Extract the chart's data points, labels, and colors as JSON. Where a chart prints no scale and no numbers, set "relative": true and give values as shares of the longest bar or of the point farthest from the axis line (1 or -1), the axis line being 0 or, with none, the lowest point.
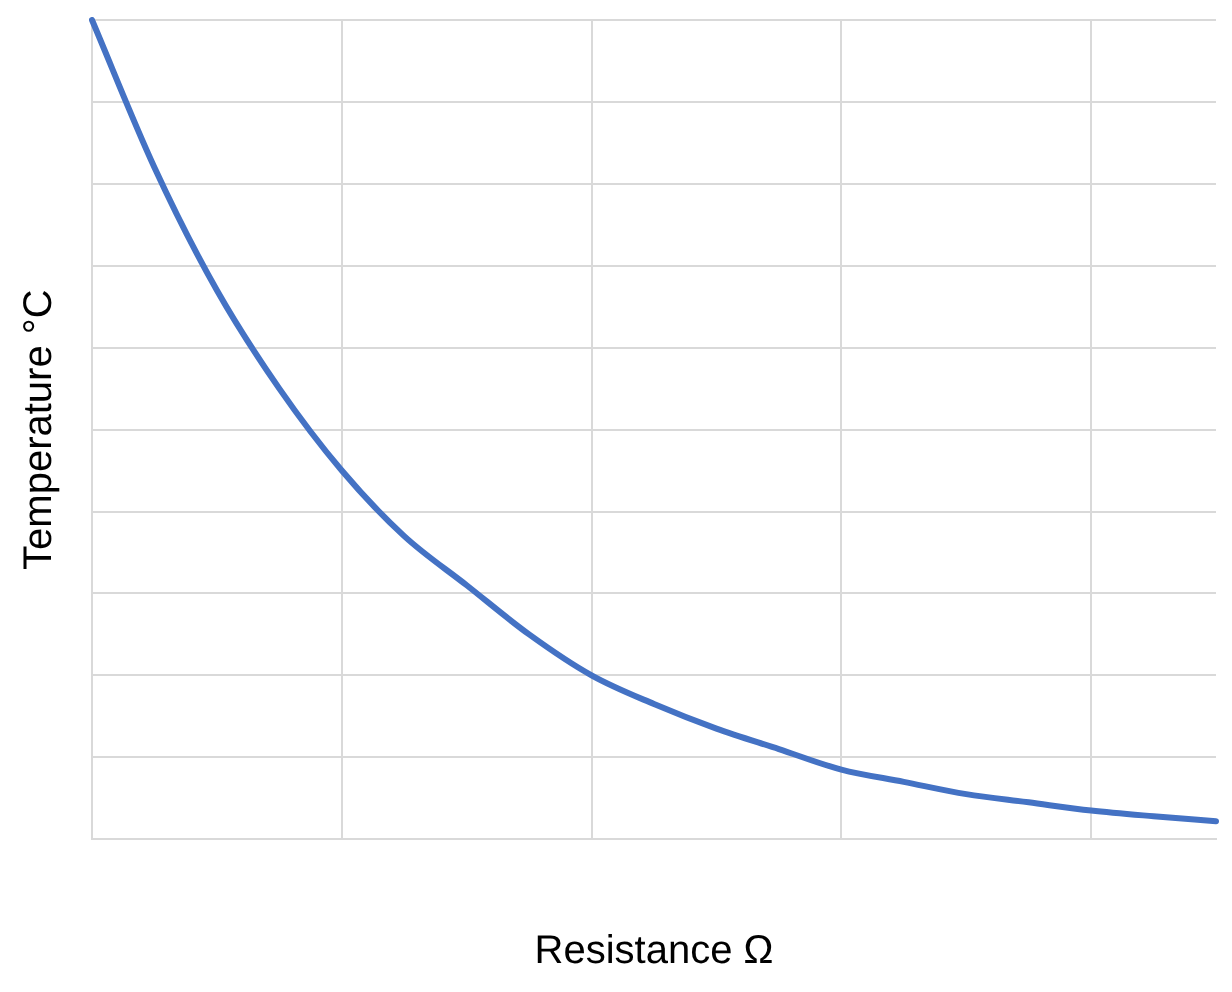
{
  "chart_data": {
    "type": "line",
    "relative": true,
    "xlabel": "Resistance Ω",
    "ylabel": "Temperature °C",
    "categories": [
      null,
      null,
      null,
      null,
      null,
      null,
      null,
      null,
      null,
      null,
      null,
      null,
      null,
      null,
      null,
      null,
      null,
      null,
      null
    ],
    "series": [
      {
        "color": "#4472c4",
        "values": [
          1.0,
          0.82,
          0.67,
          0.55,
          0.45,
          0.37,
          0.31,
          0.25,
          0.2,
          0.165,
          0.135,
          0.11,
          0.085,
          0.07,
          0.055,
          0.045,
          0.035,
          0.028,
          0.022
        ]
      }
    ],
    "grid": true,
    "legend": false,
    "marker": "none",
    "line_style": "solid"
  }
}
